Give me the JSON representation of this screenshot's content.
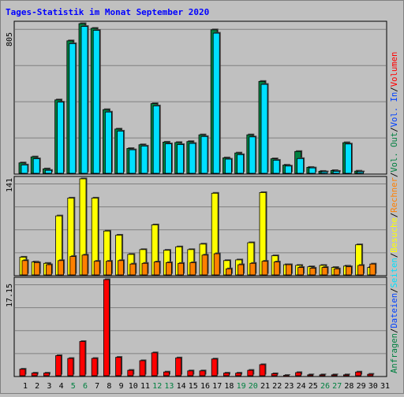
{
  "title": "Tages-Statistik im Monat September 2020",
  "colors": {
    "title": "#0000ff",
    "anfragen": "#008040",
    "dateien": "#0040ff",
    "seiten": "#00e0ff",
    "besuche": "#ffff00",
    "rechner": "#ff8000",
    "vol_out": "#008040",
    "vol_in": "#0040ff",
    "volumen": "#ff0000",
    "weekend": "#008040",
    "weekday": "#000000"
  },
  "chart_data": [
    {
      "type": "bar",
      "name": "top",
      "y_max_label": "805",
      "ylim": [
        0,
        805
      ],
      "categories": [
        "1",
        "2",
        "3",
        "4",
        "5",
        "6",
        "7",
        "8",
        "9",
        "10",
        "11",
        "12",
        "13",
        "14",
        "15",
        "16",
        "17",
        "18",
        "19",
        "20",
        "21",
        "22",
        "23",
        "24",
        "25",
        "26",
        "27",
        "28",
        "29",
        "30",
        "31"
      ],
      "series": [
        {
          "name": "Anfragen",
          "values": [
            60,
            92,
            28,
            397,
            713,
            805,
            780,
            345,
            241,
            137,
            157,
            377,
            171,
            169,
            174,
            210,
            772,
            87,
            113,
            210,
            496,
            82,
            48,
            121,
            36,
            15,
            19,
            168,
            16,
            0,
            0
          ]
        },
        {
          "name": "Dateien",
          "values": [
            49,
            82,
            20,
            385,
            698,
            790,
            769,
            332,
            230,
            130,
            150,
            365,
            162,
            158,
            164,
            201,
            754,
            80,
            104,
            199,
            480,
            74,
            43,
            83,
            33,
            12,
            15,
            161,
            12,
            0,
            0
          ]
        }
      ]
    },
    {
      "type": "bar",
      "name": "middle",
      "y_max_label": "141",
      "ylim": [
        0,
        141
      ],
      "categories": [
        "1",
        "2",
        "3",
        "4",
        "5",
        "6",
        "7",
        "8",
        "9",
        "10",
        "11",
        "12",
        "13",
        "14",
        "15",
        "16",
        "17",
        "18",
        "19",
        "20",
        "21",
        "22",
        "23",
        "24",
        "25",
        "26",
        "27",
        "28",
        "29",
        "30",
        "31"
      ],
      "series": [
        {
          "name": "Besuche",
          "values": [
            27,
            20,
            18,
            87,
            113,
            141,
            113,
            65,
            59,
            31,
            38,
            74,
            37,
            42,
            38,
            46,
            120,
            22,
            23,
            48,
            121,
            29,
            16,
            15,
            13,
            15,
            12,
            14,
            45,
            12,
            0
          ]
        },
        {
          "name": "Rechner",
          "values": [
            22,
            19,
            16,
            22,
            28,
            30,
            21,
            21,
            22,
            17,
            18,
            20,
            19,
            18,
            19,
            30,
            32,
            10,
            16,
            18,
            21,
            20,
            16,
            12,
            11,
            12,
            10,
            13,
            15,
            17,
            0
          ]
        }
      ]
    },
    {
      "type": "bar",
      "name": "bottom",
      "y_max_label": "17.15",
      "ylim": [
        0,
        17.15
      ],
      "categories": [
        "1",
        "2",
        "3",
        "4",
        "5",
        "6",
        "7",
        "8",
        "9",
        "10",
        "11",
        "12",
        "13",
        "14",
        "15",
        "16",
        "17",
        "18",
        "19",
        "20",
        "21",
        "22",
        "23",
        "24",
        "25",
        "26",
        "27",
        "28",
        "29",
        "30",
        "31"
      ],
      "series": [
        {
          "name": "Volumen",
          "values": [
            1.3,
            0.6,
            0.6,
            3.7,
            3.2,
            6.2,
            3.2,
            17.15,
            3.4,
            1.1,
            2.8,
            4.2,
            0.8,
            3.3,
            1.0,
            1.0,
            3.1,
            0.6,
            0.6,
            1.1,
            2.1,
            0.5,
            0.2,
            0.7,
            0.3,
            0.3,
            0.3,
            0.3,
            0.8,
            0.4,
            0
          ]
        }
      ]
    }
  ],
  "legend": {
    "top": [
      {
        "label": "Anfragen",
        "color": "#008040"
      },
      {
        "label": "/",
        "color": "#000000"
      },
      {
        "label": "Dateien",
        "color": "#0040ff"
      },
      {
        "label": "/",
        "color": "#000000"
      },
      {
        "label": "Seiten",
        "color": "#00e0ff"
      },
      {
        "label": "/",
        "color": "#000000"
      },
      {
        "label": "Besuche",
        "color": "#ffff00"
      },
      {
        "label": "/",
        "color": "#000000"
      },
      {
        "label": "Rechner",
        "color": "#ff8000"
      },
      {
        "label": "/",
        "color": "#000000"
      },
      {
        "label": "Vol. Out",
        "color": "#008040"
      },
      {
        "label": "/",
        "color": "#000000"
      },
      {
        "label": "Vol. In",
        "color": "#0040ff"
      },
      {
        "label": "/",
        "color": "#000000"
      },
      {
        "label": "Volumen",
        "color": "#ff0000"
      }
    ]
  },
  "weekend_days": [
    5,
    6,
    12,
    13,
    19,
    20,
    26,
    27
  ]
}
